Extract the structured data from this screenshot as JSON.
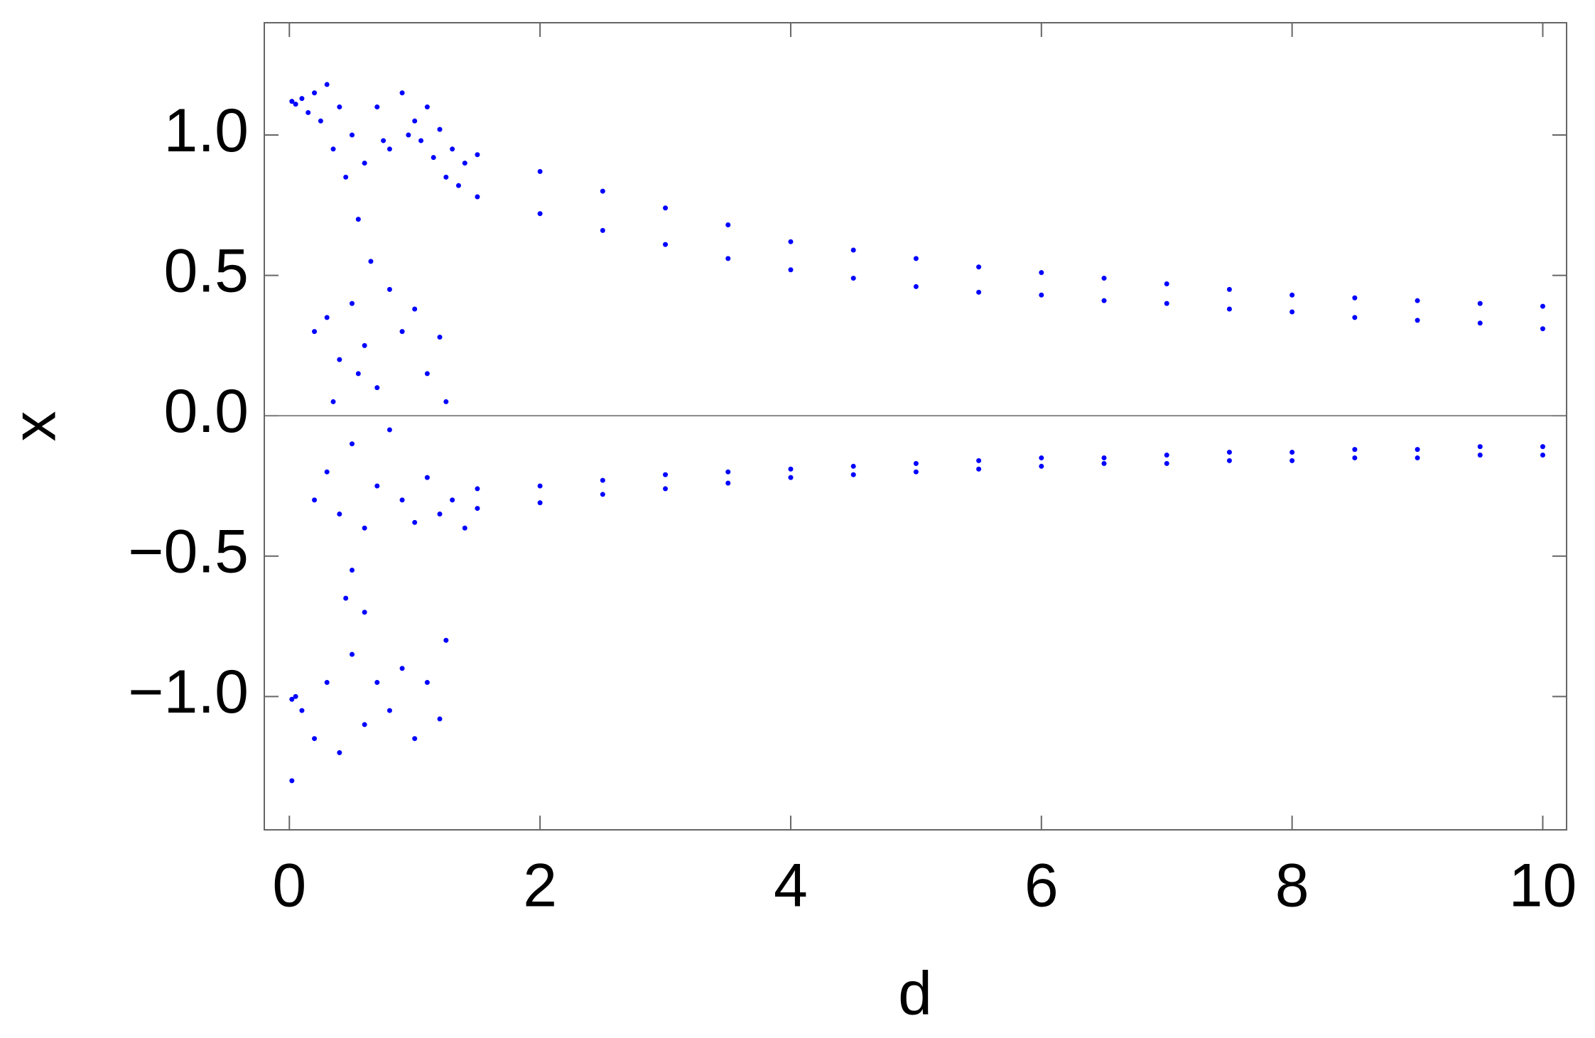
{
  "chart_data": {
    "type": "scatter",
    "x_label": "d",
    "y_label": "x",
    "color": "#0000ff",
    "xlim": [
      -0.2,
      10.19
    ],
    "ylim": [
      -1.475,
      1.4
    ],
    "xticks": [
      0,
      2,
      4,
      6,
      8,
      10
    ],
    "yticks": [
      {
        "value": -1,
        "label": "−1.0"
      },
      {
        "value": -0.5,
        "label": "−0.5"
      },
      {
        "value": 0,
        "label": "0.0"
      },
      0.5,
      {
        "value": 1,
        "label": "1.0"
      }
    ],
    "x": [
      0.02,
      0.05,
      0.1,
      0.15,
      0.2,
      0.25,
      0.3,
      0.35,
      0.4,
      0.45,
      0.5,
      0.55,
      0.6,
      0.65,
      0.7,
      0.75,
      0.8,
      0.9,
      0.95,
      1.0,
      1.05,
      1.1,
      1.15,
      1.2,
      1.25,
      1.3,
      1.35,
      1.4,
      0.2,
      0.3,
      0.4,
      0.5,
      0.6,
      0.7,
      0.8,
      0.9,
      1.0,
      1.1,
      1.2,
      1.25,
      0.35,
      0.55,
      0.2,
      0.3,
      0.4,
      0.5,
      0.6,
      0.7,
      0.8,
      0.9,
      1.0,
      1.1,
      1.2,
      1.3,
      1.4,
      0.5,
      0.6,
      0.45,
      0.02,
      0.05,
      0.1,
      0.2,
      0.3,
      0.4,
      0.5,
      0.6,
      0.7,
      0.8,
      0.9,
      1.0,
      1.1,
      1.2,
      1.25,
      0.02,
      1.5,
      2,
      2.5,
      3,
      3.5,
      4,
      4.5,
      5,
      5.5,
      6,
      6.5,
      7,
      7.5,
      8,
      8.5,
      9,
      9.5,
      10,
      1.5,
      2,
      2.5,
      3,
      3.5,
      4,
      4.5,
      5,
      5.5,
      6,
      6.5,
      7,
      7.5,
      8,
      8.5,
      9,
      9.5,
      10,
      1.5,
      2,
      2.5,
      3,
      3.5,
      4,
      4.5,
      5,
      5.5,
      6,
      6.5,
      7,
      7.5,
      8,
      8.5,
      9,
      9.5,
      10,
      1.5,
      2,
      2.5,
      3,
      3.5,
      4,
      4.5,
      5,
      5.5,
      6,
      6.5,
      7,
      7.5,
      8,
      8.5,
      9,
      9.5,
      10
    ],
    "values": [
      1.12,
      1.11,
      1.13,
      1.08,
      1.15,
      1.05,
      1.18,
      0.95,
      1.1,
      0.85,
      1.0,
      0.7,
      0.9,
      0.55,
      1.1,
      0.98,
      0.95,
      1.15,
      1.0,
      1.05,
      0.98,
      1.1,
      0.92,
      1.02,
      0.85,
      0.95,
      0.82,
      0.9,
      0.3,
      0.35,
      0.2,
      0.4,
      0.25,
      0.1,
      0.45,
      0.3,
      0.38,
      0.15,
      0.28,
      0.05,
      0.05,
      0.15,
      -0.3,
      -0.2,
      -0.35,
      -0.1,
      -0.4,
      -0.25,
      -0.05,
      -0.3,
      -0.38,
      -0.22,
      -0.35,
      -0.3,
      -0.4,
      -0.55,
      -0.7,
      -0.65,
      -1.01,
      -1.0,
      -1.05,
      -1.15,
      -0.95,
      -1.2,
      -0.85,
      -1.1,
      -0.95,
      -1.05,
      -0.9,
      -1.15,
      -0.95,
      -1.08,
      -0.8,
      -1.3,
      0.93,
      0.87,
      0.8,
      0.74,
      0.68,
      0.62,
      0.59,
      0.56,
      0.53,
      0.51,
      0.49,
      0.47,
      0.45,
      0.43,
      0.42,
      0.41,
      0.4,
      0.39,
      0.78,
      0.72,
      0.66,
      0.61,
      0.56,
      0.52,
      0.49,
      0.46,
      0.44,
      0.43,
      0.41,
      0.4,
      0.38,
      0.37,
      0.35,
      0.34,
      0.33,
      0.31,
      -0.26,
      -0.25,
      -0.23,
      -0.21,
      -0.2,
      -0.19,
      -0.18,
      -0.17,
      -0.16,
      -0.15,
      -0.15,
      -0.14,
      -0.13,
      -0.13,
      -0.12,
      -0.12,
      -0.11,
      -0.11,
      -0.33,
      -0.31,
      -0.28,
      -0.26,
      -0.24,
      -0.22,
      -0.21,
      -0.2,
      -0.19,
      -0.18,
      -0.17,
      -0.17,
      -0.16,
      -0.16,
      -0.15,
      -0.15,
      -0.14,
      -0.14
    ]
  }
}
